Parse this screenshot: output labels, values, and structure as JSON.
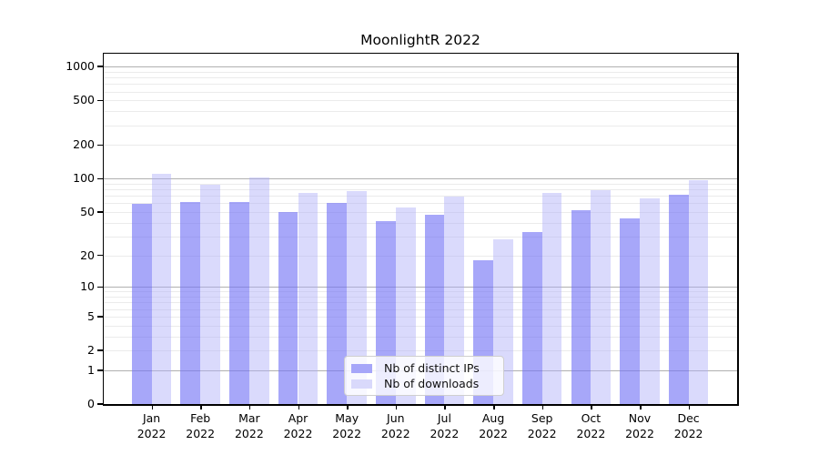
{
  "chart_data": {
    "type": "bar",
    "title": "MoonlightR 2022",
    "x": [
      "Jan",
      "Feb",
      "Mar",
      "Apr",
      "May",
      "Jun",
      "Jul",
      "Aug",
      "Sep",
      "Oct",
      "Nov",
      "Dec"
    ],
    "x_year": "2022",
    "series": [
      {
        "name": "Nb of distinct IPs",
        "values": [
          59,
          62,
          61,
          50,
          60,
          41,
          47,
          18,
          33,
          52,
          44,
          71
        ],
        "fill": "rgba(113,113,245,0.62)",
        "legend_color": "#a6a6f9"
      },
      {
        "name": "Nb of downloads",
        "values": [
          110,
          88,
          103,
          74,
          77,
          55,
          69,
          28,
          75,
          78,
          66,
          97
        ],
        "fill": "rgba(173,173,248,0.45)",
        "legend_color": "#d9d9fb"
      }
    ],
    "y_scale": "log1p",
    "y_ticks": [
      0,
      1,
      2,
      5,
      10,
      20,
      50,
      100,
      200,
      500,
      1000
    ],
    "y_major_gridlines": [
      1,
      10,
      100,
      1000
    ],
    "ylim": [
      0,
      1300
    ],
    "xlabel": "",
    "ylabel": "",
    "grid": true,
    "legend_position": "lower center",
    "colors": {
      "grid_major": "#b0b0b0",
      "grid_minor": "#ebebeb",
      "axis": "#000000",
      "text": "#000000",
      "background": "#ffffff"
    }
  }
}
